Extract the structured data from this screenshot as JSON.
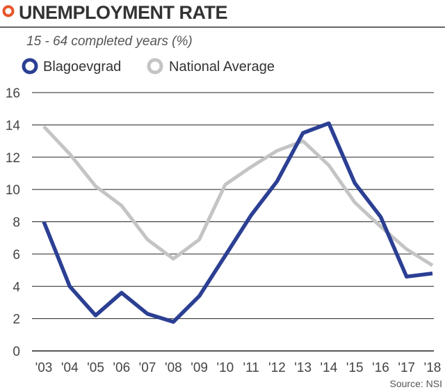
{
  "header": {
    "title": "UNEMPLOYMENT RATE",
    "subtitle": "15 - 64 completed years (%)",
    "source": "Source: NSI"
  },
  "colors": {
    "title_marker": "#e8562a",
    "blagoevgrad": "#2b3f93",
    "national": "#c4c4c4",
    "grid": "#222222",
    "rule": "#666666"
  },
  "chart_data": {
    "type": "line",
    "title": "UNEMPLOYMENT RATE",
    "subtitle": "15 - 64 completed years (%)",
    "x": [
      "'03",
      "'04",
      "'05",
      "'06",
      "'07",
      "'08",
      "'09",
      "'10",
      "'11",
      "'12",
      "'13",
      "'14",
      "'15",
      "'16",
      "'17",
      "'18"
    ],
    "ylim": [
      0,
      16
    ],
    "yticks": [
      0,
      2,
      4,
      6,
      8,
      10,
      12,
      14,
      16
    ],
    "grid": true,
    "legend_position": "top-left",
    "series": [
      {
        "name": "Blagoevgrad",
        "color": "#2b3f93",
        "values": [
          8.0,
          4.0,
          2.2,
          3.6,
          2.3,
          1.8,
          3.4,
          5.9,
          8.4,
          10.5,
          13.5,
          14.1,
          10.4,
          8.3,
          4.6,
          4.8
        ]
      },
      {
        "name": "National Average",
        "color": "#c4c4c4",
        "values": [
          13.9,
          12.2,
          10.2,
          9.0,
          6.9,
          5.7,
          6.9,
          10.3,
          11.4,
          12.4,
          13.0,
          11.5,
          9.2,
          7.7,
          6.3,
          5.3
        ]
      }
    ],
    "source": "Source: NSI"
  }
}
